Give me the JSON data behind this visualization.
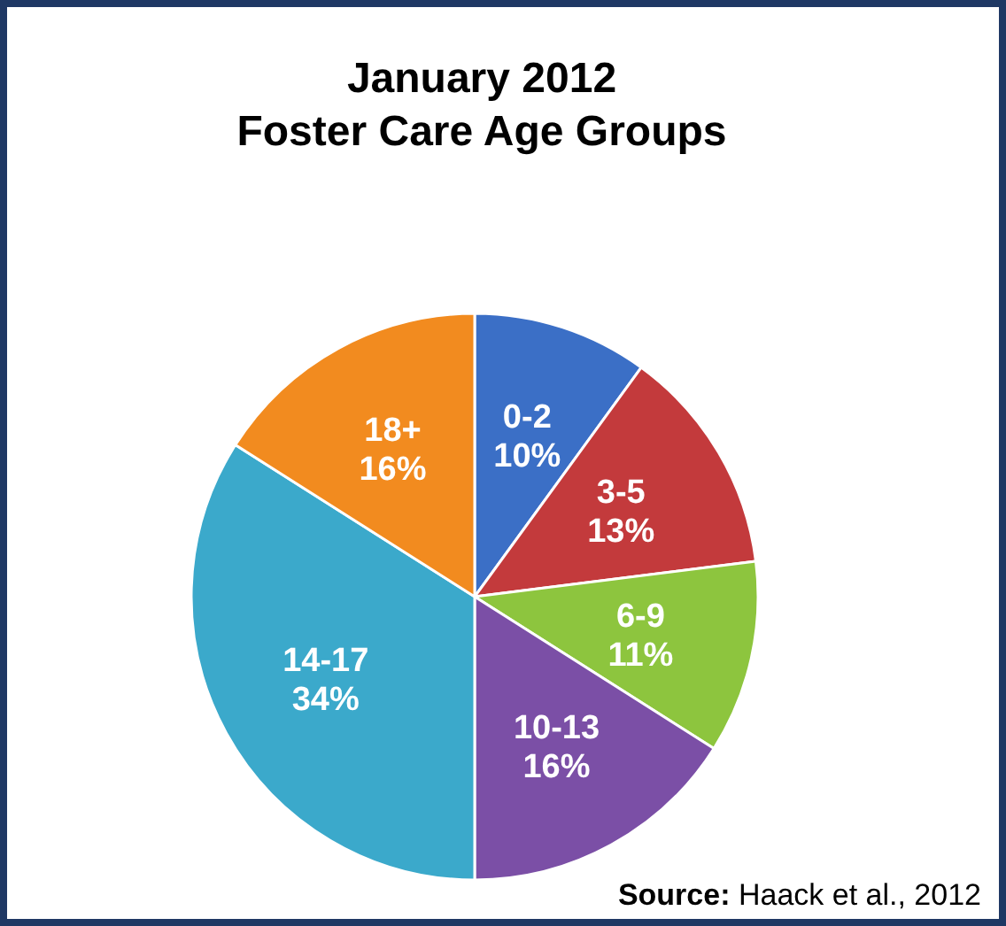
{
  "chart_data": {
    "type": "pie",
    "title": "January 2012\nFoster Care Age Groups",
    "categories": [
      "0-2",
      "3-5",
      "6-9",
      "10-13",
      "14-17",
      "18+"
    ],
    "values": [
      10,
      13,
      11,
      16,
      34,
      16
    ],
    "value_labels": [
      "10%",
      "13%",
      "11%",
      "16%",
      "34%",
      "16%"
    ],
    "colors": [
      "#3b6fc6",
      "#c33a3c",
      "#8dc53e",
      "#7b4fa6",
      "#3ba9cb",
      "#f28b1f"
    ],
    "data_labels": true,
    "annotations": [
      "Source: Haack et al., 2012"
    ]
  }
}
